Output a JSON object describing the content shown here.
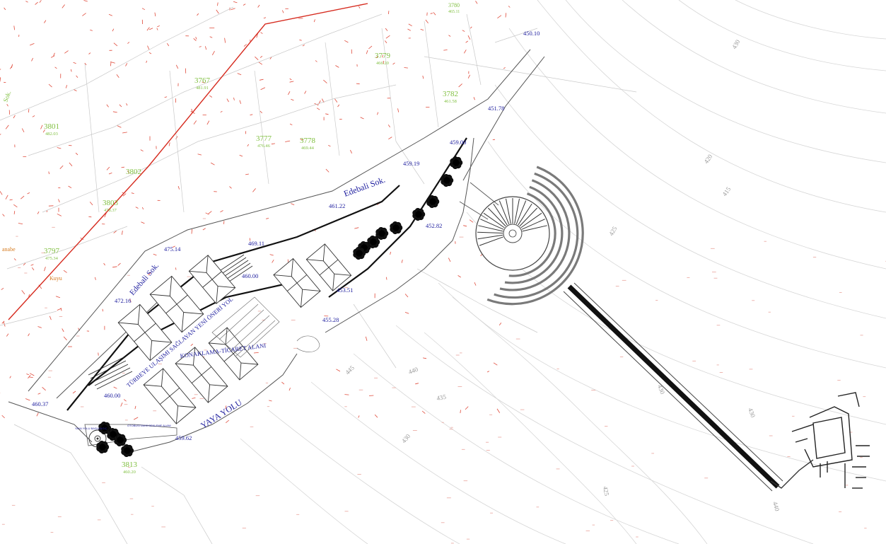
{
  "colors": {
    "road_label": "#1d1d9e",
    "parcel_label": "#7fbf3f",
    "boundary": "#d62a1e",
    "contour": "#cfcfcf",
    "survey_marks": "#e04a3a",
    "building": "#333333"
  },
  "roads": {
    "edebali_upper": "Edebali Sok.",
    "edebali_left": "Edebali Sok.",
    "new_road": "TÜRBEYE ULAŞIMI SAĞLAYAN YENİ ÖNERİ YOL",
    "footpath": "YAYA YOLU"
  },
  "zones": {
    "accommodation": "KONAKLAMA-TİCARET ALANI",
    "plaza_small_left": "YAYA YOLU BAŞLANGIÇ",
    "plaza_small_right": "OTOBÜS/TAKSİ BEKLEME ALANI"
  },
  "places": {
    "well": "Kuyu",
    "street_fragment": "Sok.",
    "edge_fragment": "anabe"
  },
  "elevations": [
    {
      "id": "e1",
      "value": "450.10"
    },
    {
      "id": "e2",
      "value": "451.78"
    },
    {
      "id": "e3",
      "value": "459.00"
    },
    {
      "id": "e4",
      "value": "459.19"
    },
    {
      "id": "e5",
      "value": "461.22"
    },
    {
      "id": "e6",
      "value": "452.82"
    },
    {
      "id": "e7",
      "value": "475.14"
    },
    {
      "id": "e8",
      "value": "469.11"
    },
    {
      "id": "e9",
      "value": "460.00"
    },
    {
      "id": "e10",
      "value": "472.16"
    },
    {
      "id": "e11",
      "value": "453.51"
    },
    {
      "id": "e12",
      "value": "455.28"
    },
    {
      "id": "e13",
      "value": "460.37"
    },
    {
      "id": "e14",
      "value": "460.00"
    },
    {
      "id": "e15",
      "value": "459.62"
    }
  ],
  "parcels": [
    {
      "id": "p1",
      "number": "3779",
      "elev": "466.20"
    },
    {
      "id": "p2",
      "number": "3767",
      "elev": "481.91"
    },
    {
      "id": "p3",
      "number": "3782",
      "elev": "461.58"
    },
    {
      "id": "p4",
      "number": "3801",
      "elev": "482.03"
    },
    {
      "id": "p5",
      "number": "3777",
      "elev": "476.46"
    },
    {
      "id": "p6",
      "number": "3778",
      "elev": "469.44"
    },
    {
      "id": "p7",
      "number": "3802",
      "elev": ""
    },
    {
      "id": "p8",
      "number": "3803",
      "elev": "478.37"
    },
    {
      "id": "p9",
      "number": "3797",
      "elev": "475.34"
    },
    {
      "id": "p10",
      "number": "3813",
      "elev": "460.20"
    },
    {
      "id": "p11",
      "number": "3780",
      "elev": "465.11"
    }
  ],
  "contours": [
    {
      "id": "c1",
      "value": "430"
    },
    {
      "id": "c2",
      "value": "420"
    },
    {
      "id": "c3",
      "value": "415"
    },
    {
      "id": "c4",
      "value": "425"
    },
    {
      "id": "c5",
      "value": "445"
    },
    {
      "id": "c6",
      "value": "440"
    },
    {
      "id": "c7",
      "value": "435"
    },
    {
      "id": "c8",
      "value": "430"
    },
    {
      "id": "c9",
      "value": "430"
    },
    {
      "id": "c10",
      "value": "430"
    },
    {
      "id": "c11",
      "value": "425"
    },
    {
      "id": "c12",
      "value": "440"
    }
  ]
}
